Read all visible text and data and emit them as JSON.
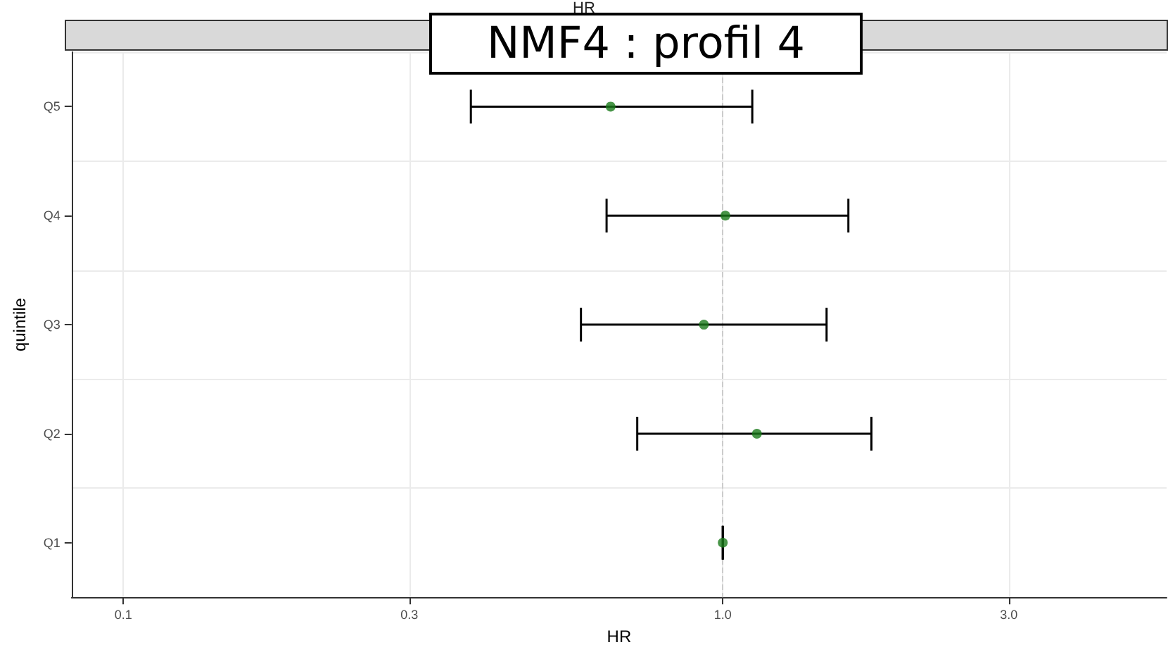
{
  "chart_data": {
    "type": "scatter",
    "orientation": "horizontal",
    "title": "HR",
    "xlabel": "HR",
    "ylabel": "quintile",
    "annotations": [
      "NMF4 : profil 4"
    ],
    "categories": [
      "Q5",
      "Q4",
      "Q3",
      "Q2",
      "Q1"
    ],
    "values": [
      0.65,
      1.01,
      0.93,
      1.14,
      1.0
    ],
    "errors": [
      [
        0.38,
        1.12
      ],
      [
        0.64,
        1.62
      ],
      [
        0.58,
        1.49
      ],
      [
        0.72,
        1.77
      ],
      [
        1.0,
        1.0
      ]
    ],
    "color": "#1a7a1a",
    "marker": "circle",
    "xlim": [
      0.082,
      5.5
    ],
    "xticks": [
      0.1,
      0.3,
      {
        "value": 1,
        "label": "1.0"
      },
      {
        "value": 3,
        "label": "3.0"
      }
    ],
    "log": "x",
    "grid": true,
    "ref_lines": [
      {
        "axis": "x",
        "value": 1,
        "color": "#cccccc",
        "line_style": "dashed"
      }
    ]
  }
}
